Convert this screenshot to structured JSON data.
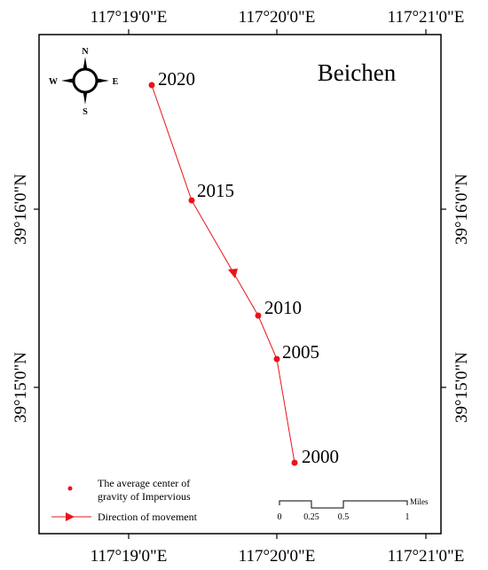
{
  "map": {
    "title": "Beichen",
    "axes": {
      "top_ticks": [
        "117°19'0\"E",
        "117°20'0\"E",
        "117°21'0\"E"
      ],
      "bottom_ticks": [
        "117°19'0\"E",
        "117°20'0\"E",
        "117°21'0\"E"
      ],
      "left_ticks": [
        "39°16'0\"N",
        "39°15'0\"N"
      ],
      "right_ticks": [
        "39°16'0\"N",
        "39°15'0\"N"
      ]
    },
    "compass": {
      "n": "N",
      "s": "S",
      "e": "E",
      "w": "W"
    },
    "points": [
      {
        "year": "2020"
      },
      {
        "year": "2015"
      },
      {
        "year": "2010"
      },
      {
        "year": "2005"
      },
      {
        "year": "2000"
      }
    ],
    "legend": {
      "point_label_line1": "The average center of",
      "point_label_line2": "gravity of Impervious",
      "arrow_label": "Direction of movement"
    },
    "scalebar": {
      "unit": "Miles",
      "labels": [
        "0",
        "0.25",
        "0.5",
        "1"
      ]
    },
    "colors": {
      "track": "#e8141b",
      "frame": "#000000"
    }
  }
}
